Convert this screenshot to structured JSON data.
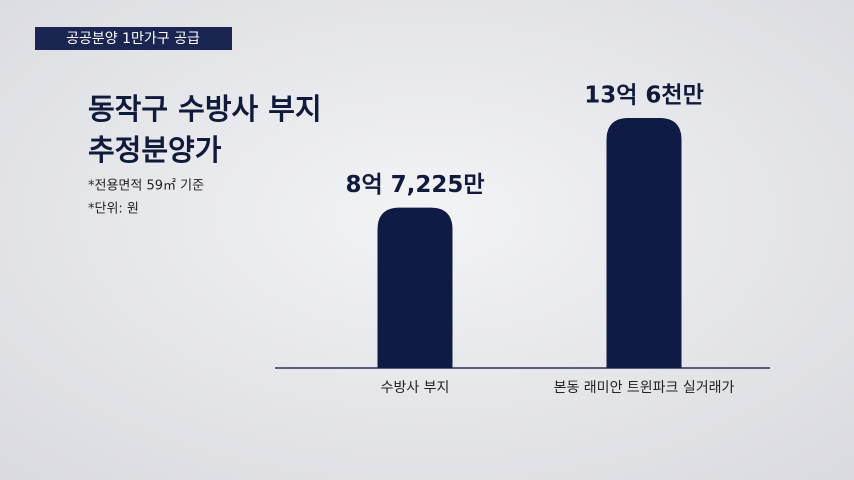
{
  "header": {
    "tag": "공공분양 1만가구 공급"
  },
  "chart_data": {
    "type": "bar",
    "title_lines": [
      "동작구 수방사 부지",
      "추정분양가"
    ],
    "notes": [
      "*전용면적 59㎡ 기준",
      "*단위: 원"
    ],
    "categories": [
      "수방사 부지",
      "본동 래미안 트윈파크 실거래가"
    ],
    "values": [
      872250000,
      1360000000
    ],
    "value_labels": [
      "8억 7,225만",
      "13억 6천만"
    ],
    "color": "#0f1a45"
  }
}
